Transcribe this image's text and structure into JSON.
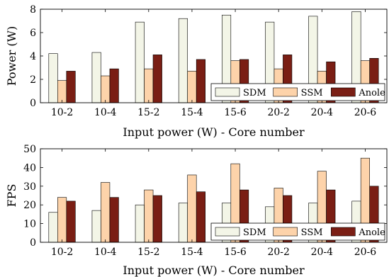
{
  "chart_data": [
    {
      "type": "bar",
      "categories": [
        "10-2",
        "10-4",
        "15-2",
        "15-4",
        "15-6",
        "20-2",
        "20-4",
        "20-6"
      ],
      "xlabel": "Input power (W) - Core number",
      "ylabel": "Power (W)",
      "ylim": [
        0,
        8
      ],
      "yticks": [
        0,
        2,
        4,
        6,
        8
      ],
      "grid": false,
      "legend": "bottom-right",
      "series": [
        {
          "name": "SDM",
          "color": "#f3f5e7",
          "values": [
            4.2,
            4.3,
            6.9,
            7.2,
            7.5,
            6.9,
            7.4,
            7.8
          ]
        },
        {
          "name": "SSM",
          "color": "#fdd3aa",
          "values": [
            1.9,
            2.3,
            2.9,
            2.7,
            3.6,
            2.9,
            2.7,
            3.6
          ]
        },
        {
          "name": "Anole",
          "color": "#7a1e14",
          "values": [
            2.7,
            2.9,
            4.1,
            3.7,
            3.7,
            4.1,
            3.5,
            3.8
          ]
        }
      ]
    },
    {
      "type": "bar",
      "categories": [
        "10-2",
        "10-4",
        "15-2",
        "15-4",
        "15-6",
        "20-2",
        "20-4",
        "20-6"
      ],
      "xlabel": "Input power (W) - Core number",
      "ylabel": "FPS",
      "ylim": [
        0,
        50
      ],
      "yticks": [
        0,
        10,
        20,
        30,
        40,
        50
      ],
      "grid": false,
      "legend": "bottom-right",
      "series": [
        {
          "name": "SDM",
          "color": "#f3f5e7",
          "values": [
            16,
            17,
            20,
            21,
            21,
            19,
            21,
            22
          ]
        },
        {
          "name": "SSM",
          "color": "#fdd3aa",
          "values": [
            24,
            32,
            28,
            36,
            42,
            29,
            38,
            45
          ]
        },
        {
          "name": "Anole",
          "color": "#7a1e14",
          "values": [
            22,
            24,
            25,
            27,
            28,
            25,
            28,
            30
          ]
        }
      ]
    }
  ]
}
